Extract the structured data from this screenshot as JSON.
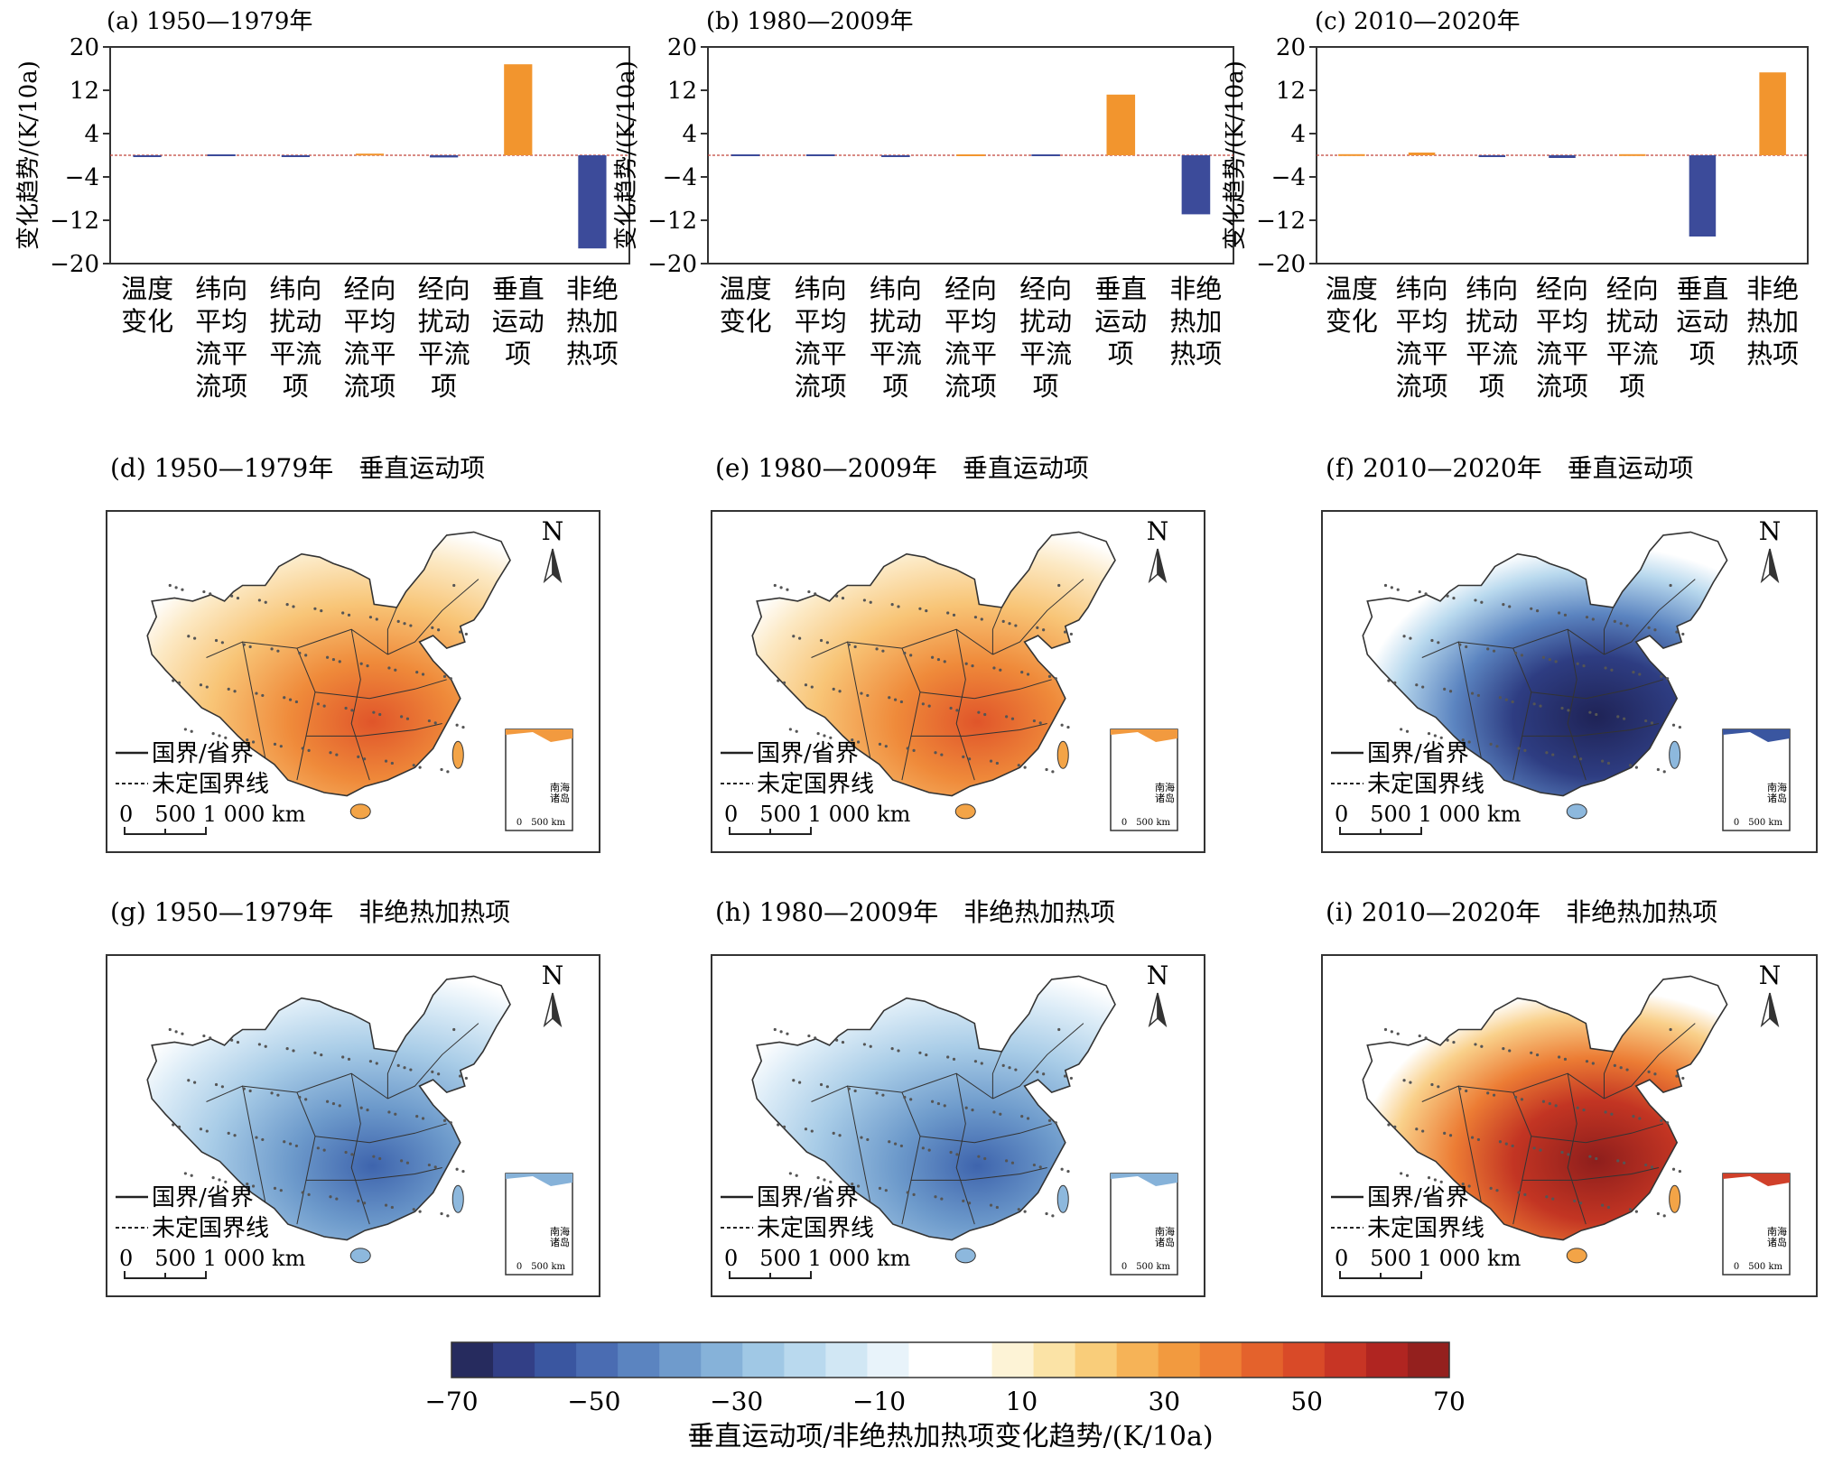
{
  "chart_data": [
    {
      "type": "bar",
      "panel": "a",
      "title": "(a) 1950—1979年",
      "ylabel": "变化趋势/(K/10a)",
      "ylim": [
        -20,
        20
      ],
      "yticks": [
        "20",
        "12",
        "4",
        "-4",
        "-12",
        "-20"
      ],
      "categories": [
        "温度\n变化",
        "纬向\n平均\n流平\n流项",
        "纬向\n扰动\n平流\n项",
        "经向\n平均\n流平\n流项",
        "经向\n扰动\n平流\n项",
        "垂直\n运动\n项",
        "非绝\n热加\n热项"
      ],
      "values": [
        -0.2,
        -0.1,
        -0.3,
        0.3,
        -0.4,
        16.8,
        -17.2
      ],
      "colors": [
        "#3c4b9a",
        "#3c4b9a",
        "#3c4b9a",
        "#f2952e",
        "#3c4b9a",
        "#f2952e",
        "#3c4b9a"
      ]
    },
    {
      "type": "bar",
      "panel": "b",
      "title": "(b) 1980—2009年",
      "ylabel": "变化趋势/(K/10a)",
      "ylim": [
        -20,
        20
      ],
      "yticks": [
        "20",
        "12",
        "4",
        "-4",
        "-12",
        "-20"
      ],
      "categories": [
        "温度\n变化",
        "纬向\n平均\n流平\n流项",
        "纬向\n扰动\n平流\n项",
        "经向\n平均\n流平\n流项",
        "经向\n扰动\n平流\n项",
        "垂直\n运动\n项",
        "非绝\n热加\n热项"
      ],
      "values": [
        0.0,
        0.0,
        -0.2,
        0.1,
        -0.1,
        11.2,
        -10.9
      ],
      "colors": [
        "#3c4b9a",
        "#3c4b9a",
        "#3c4b9a",
        "#f2952e",
        "#3c4b9a",
        "#f2952e",
        "#3c4b9a"
      ]
    },
    {
      "type": "bar",
      "panel": "c",
      "title": "(c) 2010—2020年",
      "ylabel": "变化趋势/(K/10a)",
      "ylim": [
        -20,
        20
      ],
      "yticks": [
        "20",
        "12",
        "4",
        "-4",
        "-12",
        "-20"
      ],
      "categories": [
        "温度\n变化",
        "纬向\n平均\n流平\n流项",
        "纬向\n扰动\n平流\n项",
        "经向\n平均\n流平\n流项",
        "经向\n扰动\n平流\n项",
        "垂直\n运动\n项",
        "非绝\n热加\n热项"
      ],
      "values": [
        0.2,
        0.5,
        -0.3,
        -0.5,
        0.2,
        -15.0,
        15.3
      ],
      "colors": [
        "#f2952e",
        "#f2952e",
        "#3c4b9a",
        "#3c4b9a",
        "#f2952e",
        "#3c4b9a",
        "#f2952e"
      ]
    }
  ],
  "maps": [
    {
      "panel": "d",
      "title": "(d) 1950—1979年　垂直运动项",
      "sign": "warm",
      "strength": 0.75
    },
    {
      "panel": "e",
      "title": "(e) 1980—2009年　垂直运动项",
      "sign": "warm",
      "strength": 0.85
    },
    {
      "panel": "f",
      "title": "(f) 2010—2020年　垂直运动项",
      "sign": "cool",
      "strength": 1.0
    },
    {
      "panel": "g",
      "title": "(g) 1950—1979年　非绝热加热项",
      "sign": "cool",
      "strength": 0.65
    },
    {
      "panel": "h",
      "title": "(h) 1980—2009年　非绝热加热项",
      "sign": "cool",
      "strength": 0.75
    },
    {
      "panel": "i",
      "title": "(i) 2010—2020年　非绝热加热项",
      "sign": "warm",
      "strength": 1.0
    }
  ],
  "map_legend": {
    "border": "国界/省界",
    "undetermined": "未定国界线",
    "scale": "0　500 1 000 km",
    "north": "N",
    "inset": "南海\n诸岛",
    "inset_scale": "0　500 km"
  },
  "colorbar": {
    "ticks": [
      "−70",
      "−50",
      "−30",
      "−10",
      "10",
      "30",
      "50",
      "70"
    ],
    "title": "垂直运动项/非绝热加热项变化趋势/(K/10a)",
    "colors": [
      "#262b5e",
      "#323f86",
      "#3a56a0",
      "#4a6cb2",
      "#5b84c0",
      "#6f9bcc",
      "#86b2d9",
      "#a0c8e5",
      "#b9d9ee",
      "#d1e7f4",
      "#e8f3fa",
      "#ffffff",
      "#ffffff",
      "#fdf3d6",
      "#fbe3a6",
      "#f9cd7a",
      "#f6b357",
      "#f29a3f",
      "#ee7f35",
      "#e4622c",
      "#d94a28",
      "#c73525",
      "#b02521",
      "#94201e"
    ]
  }
}
